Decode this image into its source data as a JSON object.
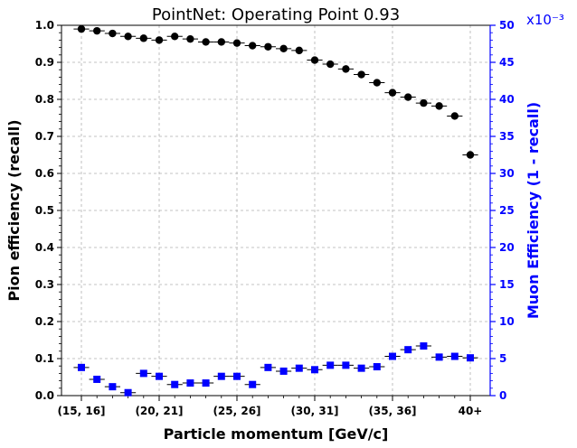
{
  "chart_data": {
    "type": "scatter",
    "title": "PointNet: Operating Point 0.93",
    "xlabel": "Particle momentum [GeV/c]",
    "ylabel": "Pion efficiency (recall)",
    "ylabel_right": "Muon Efficiency (1 - recall)",
    "right_axis_offset": "x10⁻³",
    "ylim": [
      0,
      1.0
    ],
    "ylim_right": [
      0,
      50
    ],
    "grid": true,
    "colors": {
      "pion": "#000000",
      "muon": "#0000ff",
      "right_axis": "#0000ff"
    },
    "x_tick_labels": [
      "(15, 16]",
      "(20, 21]",
      "(25, 26]",
      "(30, 31]",
      "(35, 36]",
      "40+"
    ],
    "x_tick_indices": [
      0,
      5,
      10,
      15,
      20,
      25
    ],
    "y_ticks": [
      "0.0",
      "0.1",
      "0.2",
      "0.3",
      "0.4",
      "0.5",
      "0.6",
      "0.7",
      "0.8",
      "0.9",
      "1.0"
    ],
    "y_right_ticks": [
      "0",
      "5",
      "10",
      "15",
      "20",
      "25",
      "30",
      "35",
      "40",
      "45",
      "50"
    ],
    "categories": [
      "(15, 16]",
      "(16, 17]",
      "(17, 18]",
      "(18, 19]",
      "(19, 20]",
      "(20, 21]",
      "(21, 22]",
      "(22, 23]",
      "(23, 24]",
      "(24, 25]",
      "(25, 26]",
      "(26, 27]",
      "(27, 28]",
      "(28, 29]",
      "(29, 30]",
      "(30, 31]",
      "(31, 32]",
      "(32, 33]",
      "(33, 34]",
      "(34, 35]",
      "(35, 36]",
      "(36, 37]",
      "(37, 38]",
      "(38, 39]",
      "(39, 40]",
      "40+"
    ],
    "series": [
      {
        "axis": "left",
        "marker": "circle",
        "values": [
          0.99,
          0.985,
          0.978,
          0.97,
          0.965,
          0.96,
          0.97,
          0.963,
          0.955,
          0.955,
          0.952,
          0.945,
          0.942,
          0.937,
          0.932,
          0.906,
          0.895,
          0.882,
          0.867,
          0.845,
          0.818,
          0.806,
          0.79,
          0.782,
          0.755,
          0.65
        ]
      },
      {
        "axis": "right",
        "marker": "square",
        "values": [
          3.8,
          2.2,
          1.2,
          0.4,
          3.0,
          2.6,
          1.5,
          1.7,
          1.7,
          2.6,
          2.6,
          1.5,
          3.8,
          3.3,
          3.7,
          3.5,
          4.1,
          4.1,
          3.7,
          3.9,
          5.3,
          6.2,
          6.7,
          5.2,
          5.3,
          5.1
        ]
      }
    ]
  }
}
